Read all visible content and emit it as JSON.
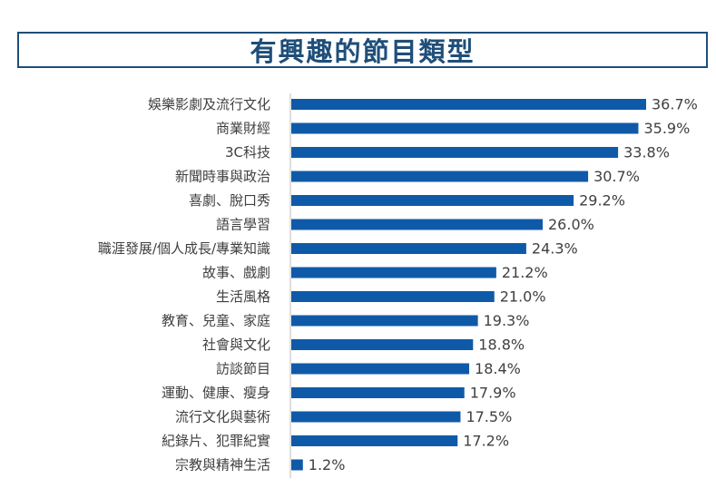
{
  "chart_data": {
    "type": "bar",
    "orientation": "horizontal",
    "title": "有興趣的節目類型",
    "categories": [
      "娛樂影劇及流行文化",
      "商業財經",
      "3C科技",
      "新聞時事與政治",
      "喜劇、脫口秀",
      "語言學習",
      "職涯發展/個人成長/專業知識",
      "故事、戲劇",
      "生活風格",
      "教育、兒童、家庭",
      "社會與文化",
      "訪談節目",
      "運動、健康、瘦身",
      "流行文化與藝術",
      "紀錄片、犯罪紀實",
      "宗教與精神生活"
    ],
    "values": [
      36.7,
      35.9,
      33.8,
      30.7,
      29.2,
      26.0,
      24.3,
      21.2,
      21.0,
      19.3,
      18.8,
      18.4,
      17.9,
      17.5,
      17.2,
      1.2
    ],
    "value_labels": [
      "36.7%",
      "35.9%",
      "33.8%",
      "30.7%",
      "29.2%",
      "26.0%",
      "24.3%",
      "21.2%",
      "21.0%",
      "19.3%",
      "18.8%",
      "18.4%",
      "17.9%",
      "17.5%",
      "17.2%",
      "1.2%"
    ],
    "xlim": [
      0,
      40
    ],
    "grid": false,
    "bar_color": "#0f5aa8"
  }
}
